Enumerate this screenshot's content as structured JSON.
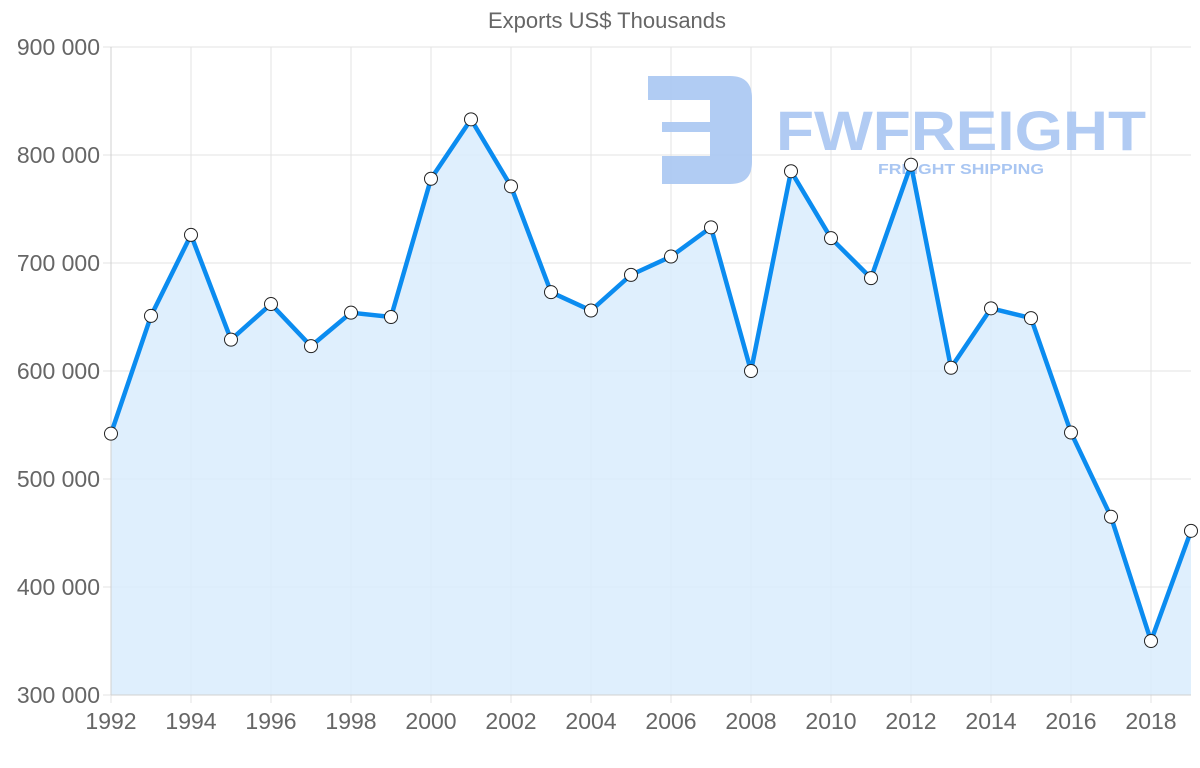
{
  "chart_data": {
    "type": "line",
    "title": "Exports US$ Thousands",
    "xlabel": "",
    "ylabel": "",
    "x": [
      1992,
      1993,
      1994,
      1995,
      1996,
      1997,
      1998,
      1999,
      2000,
      2001,
      2002,
      2003,
      2004,
      2005,
      2006,
      2007,
      2008,
      2009,
      2010,
      2011,
      2012,
      2013,
      2014,
      2015,
      2016,
      2017,
      2018,
      2019
    ],
    "series": [
      {
        "name": "Exports US$ Thousands",
        "values": [
          542000,
          651000,
          726000,
          629000,
          662000,
          623000,
          654000,
          650000,
          778000,
          833000,
          771000,
          673000,
          656000,
          689000,
          706000,
          733000,
          600000,
          785000,
          723000,
          686000,
          791000,
          603000,
          658000,
          649000,
          543000,
          465000,
          350000,
          452000
        ]
      }
    ],
    "ylim": [
      300000,
      900000
    ],
    "yticks": [
      300000,
      400000,
      500000,
      600000,
      700000,
      800000,
      900000
    ],
    "ytick_labels": [
      "300 000",
      "400 000",
      "500 000",
      "600 000",
      "700 000",
      "800 000",
      "900 000"
    ],
    "xticks": [
      1992,
      1994,
      1996,
      1998,
      2000,
      2002,
      2004,
      2006,
      2008,
      2010,
      2012,
      2014,
      2016,
      2018
    ],
    "xtick_labels": [
      "1992",
      "1994",
      "1996",
      "1998",
      "2000",
      "2002",
      "2004",
      "2006",
      "2008",
      "2010",
      "2012",
      "2014",
      "2016",
      "2018"
    ],
    "grid": true,
    "legend": "none",
    "fill": true
  },
  "colors": {
    "line": "#0b8cf0",
    "fill": "#d9ecfd",
    "grid": "#e3e3e3",
    "axis_text": "#666666",
    "marker_fill": "#ffffff",
    "marker_stroke": "#222222",
    "watermark": "#a9c6f2"
  },
  "watermark": {
    "brand": "FWFREIGHT",
    "tagline": "FREIGHT SHIPPING"
  }
}
